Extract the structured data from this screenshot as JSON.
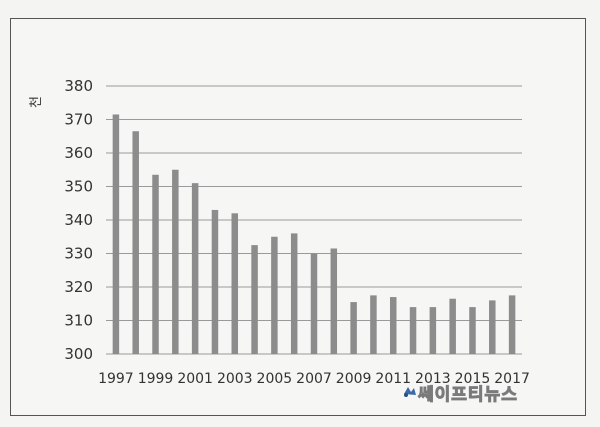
{
  "chart_data": {
    "type": "bar",
    "ylabel": "천",
    "ylim": [
      300,
      380
    ],
    "yticks": [
      "300",
      "310",
      "320",
      "330",
      "340",
      "350",
      "360",
      "370",
      "380"
    ],
    "categories": [
      "1997",
      "1998",
      "1999",
      "2000",
      "2001",
      "2002",
      "2003",
      "2004",
      "2005",
      "2006",
      "2007",
      "2008",
      "2009",
      "2010",
      "2011",
      "2012",
      "2013",
      "2014",
      "2015",
      "2016",
      "2017"
    ],
    "xtick_labels": [
      "1997",
      "1999",
      "2001",
      "2003",
      "2005",
      "2007",
      "2009",
      "2011",
      "2013",
      "2015",
      "2017"
    ],
    "values": [
      371.5,
      366.5,
      353.5,
      355,
      351,
      343,
      342,
      332.5,
      335,
      336,
      330,
      331.5,
      315.5,
      317.5,
      317,
      314,
      314,
      316.5,
      314,
      316,
      317.5
    ],
    "grid": true,
    "bar_color": "#8c8c8c"
  },
  "watermark": {
    "text": "쎄이프티뉴스"
  }
}
